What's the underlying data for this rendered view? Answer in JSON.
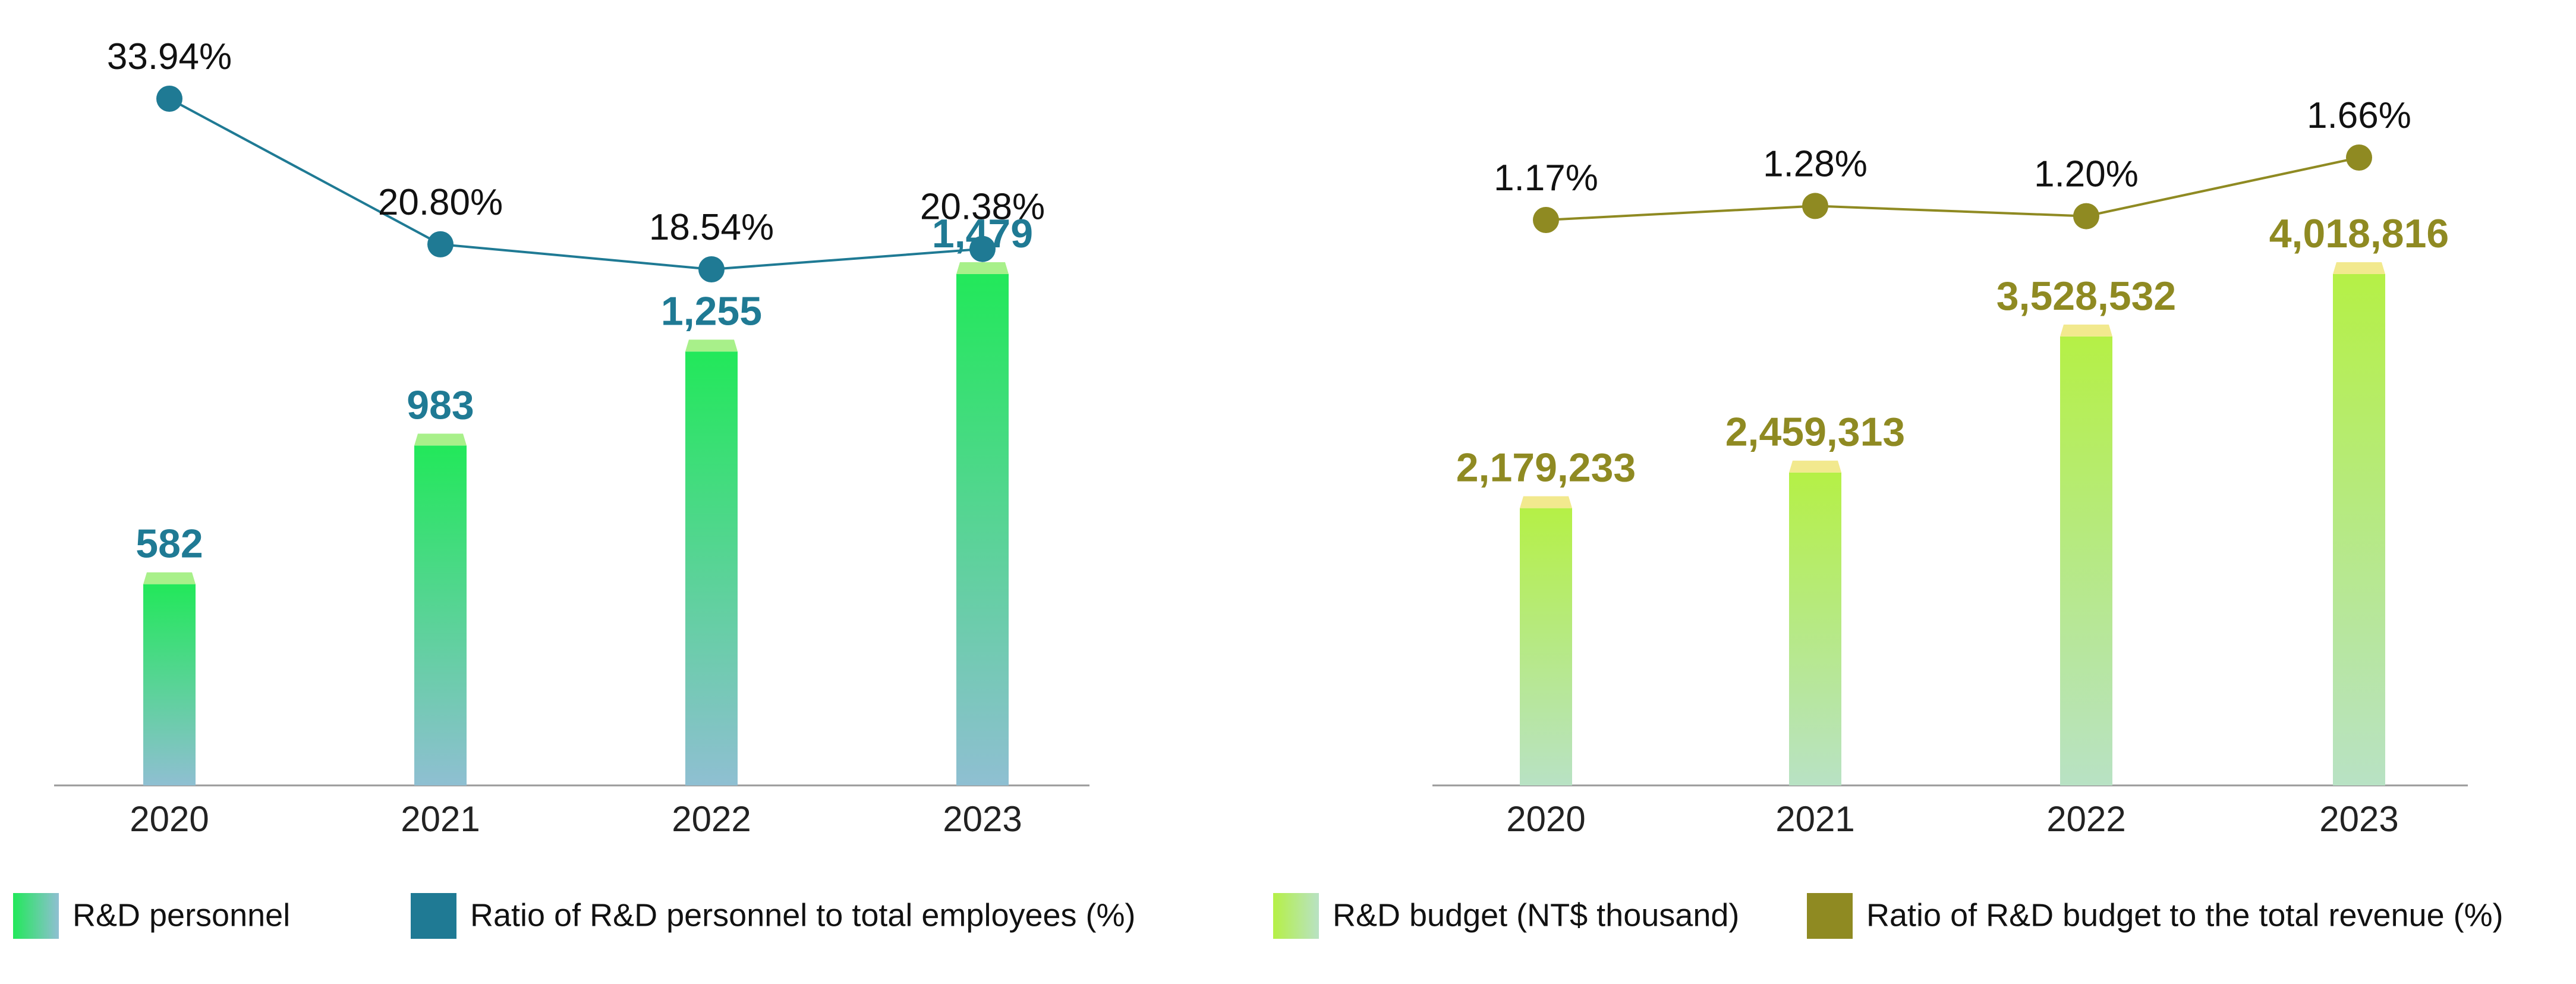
{
  "chart_data": [
    {
      "type": "bar-line",
      "categories": [
        "2020",
        "2021",
        "2022",
        "2023"
      ],
      "series": [
        {
          "name": "R&D personnel",
          "type": "bar",
          "color": "#22e85a",
          "values": [
            582,
            983,
            1255,
            1479
          ],
          "value_labels": [
            "582",
            "983",
            "1,255",
            "1,479"
          ]
        },
        {
          "name": "Ratio of R&D personnel to total employees (%)",
          "type": "line",
          "color": "#1f7a94",
          "values": [
            33.94,
            20.8,
            18.54,
            20.38
          ],
          "value_labels": [
            "33.94%",
            "20.80%",
            "18.54%",
            "20.38%"
          ]
        }
      ]
    },
    {
      "type": "bar-line",
      "categories": [
        "2020",
        "2021",
        "2022",
        "2023"
      ],
      "series": [
        {
          "name": "R&D budget (NT$ thousand)",
          "type": "bar",
          "color": "#b5f046",
          "values": [
            2179233,
            2459313,
            3528532,
            4018816
          ],
          "value_labels": [
            "2,179,233",
            "2,459,313",
            "3,528,532",
            "4,018,816"
          ]
        },
        {
          "name": "Ratio of R&D budget to the total revenue (%)",
          "type": "line",
          "color": "#8f8a22",
          "values": [
            1.17,
            1.28,
            1.2,
            1.66
          ],
          "value_labels": [
            "1.17%",
            "1.28%",
            "1.20%",
            "1.66%"
          ]
        }
      ]
    }
  ]
}
